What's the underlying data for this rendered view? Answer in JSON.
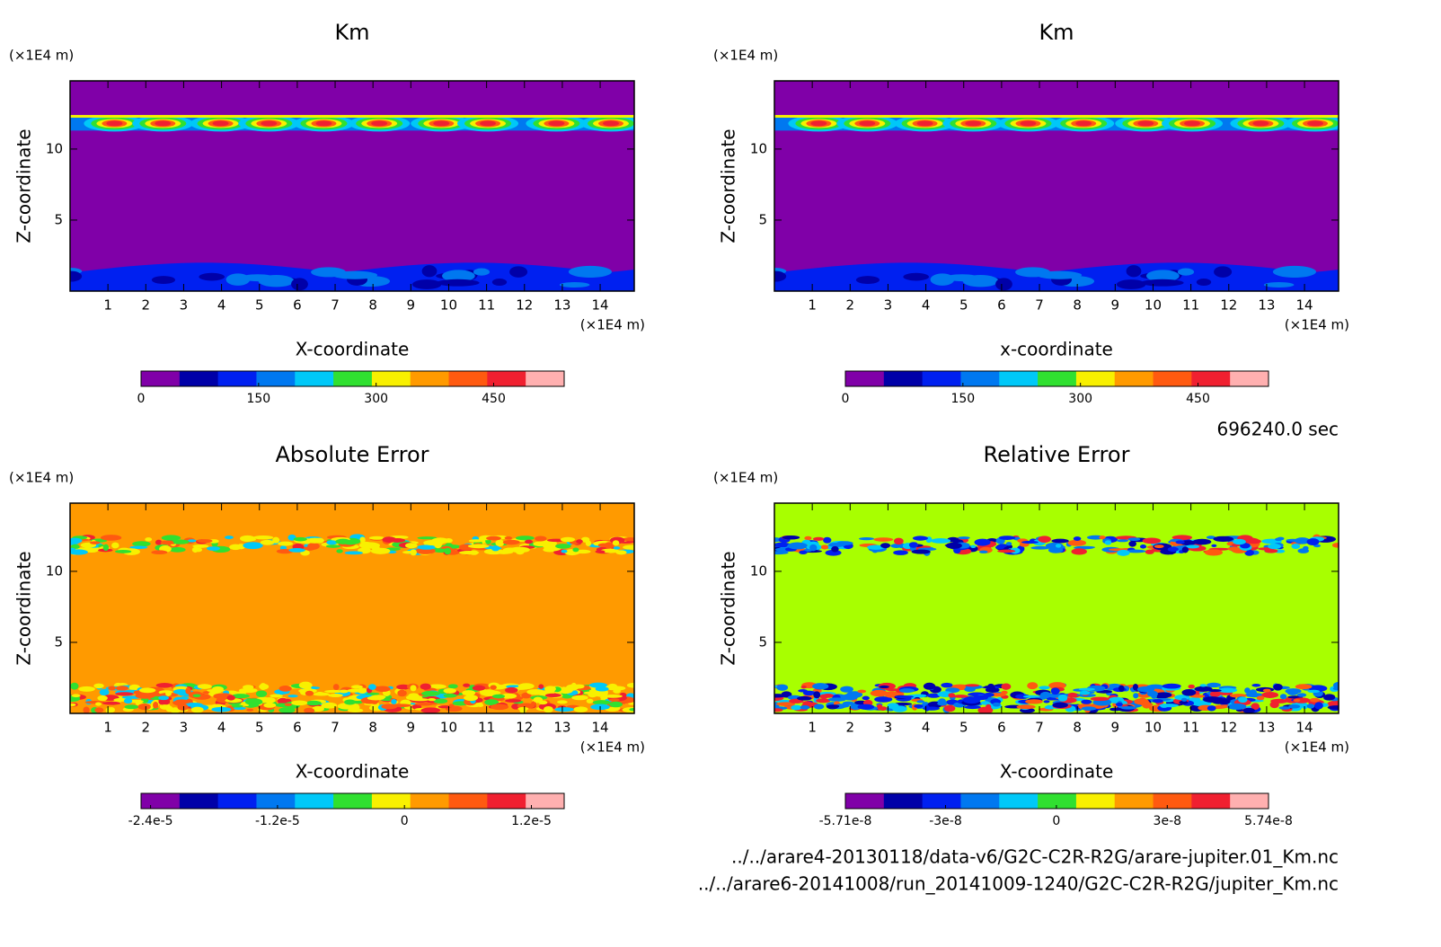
{
  "chart_data": [
    {
      "type": "contour",
      "title": "Km",
      "xlabel": "X-coordinate",
      "ylabel": "Z-coordinate",
      "xunit": "(×1E4 m)",
      "yunit": "(×1E4 m)",
      "xlim": [
        0,
        14.9
      ],
      "ylim": [
        0,
        14.8
      ],
      "xticks": [
        1,
        2,
        3,
        4,
        5,
        6,
        7,
        8,
        9,
        10,
        11,
        12,
        13,
        14
      ],
      "yticks": [
        5,
        10
      ],
      "background_color": "#8000a8",
      "colorbar": {
        "colors": [
          "#8000a8",
          "#0000a8",
          "#0020f0",
          "#0078f0",
          "#00c8f8",
          "#30e030",
          "#f8f000",
          "#ff9a00",
          "#ff5a10",
          "#f02030",
          "#ffb0b0"
        ],
        "clim": [
          0,
          540
        ],
        "ticks": [
          0,
          150,
          300,
          450
        ]
      }
    },
    {
      "type": "contour",
      "title": "Km",
      "xlabel": "x-coordinate",
      "ylabel": "Z-coordinate",
      "xunit": "(×1E4 m)",
      "yunit": "(×1E4 m)",
      "xlim": [
        0,
        14.9
      ],
      "ylim": [
        0,
        14.8
      ],
      "xticks": [
        1,
        2,
        3,
        4,
        5,
        6,
        7,
        8,
        9,
        10,
        11,
        12,
        13,
        14
      ],
      "yticks": [
        5,
        10
      ],
      "background_color": "#8000a8",
      "colorbar": {
        "colors": [
          "#8000a8",
          "#0000a8",
          "#0020f0",
          "#0078f0",
          "#00c8f8",
          "#30e030",
          "#f8f000",
          "#ff9a00",
          "#ff5a10",
          "#f02030",
          "#ffb0b0"
        ],
        "clim": [
          0,
          540
        ],
        "ticks": [
          0,
          150,
          300,
          450
        ]
      }
    },
    {
      "type": "contour",
      "title": "Absolute Error",
      "xlabel": "X-coordinate",
      "ylabel": "Z-coordinate",
      "xunit": "(×1E4 m)",
      "yunit": "(×1E4 m)",
      "xlim": [
        0,
        14.9
      ],
      "ylim": [
        0,
        14.8
      ],
      "xticks": [
        1,
        2,
        3,
        4,
        5,
        6,
        7,
        8,
        9,
        10,
        11,
        12,
        13,
        14
      ],
      "yticks": [
        5,
        10
      ],
      "background_color": "#ff9a00",
      "colorbar": {
        "colors": [
          "#8000a8",
          "#0000a8",
          "#0020f0",
          "#0078f0",
          "#00c8f8",
          "#30e030",
          "#f8f000",
          "#ff9a00",
          "#ff5a10",
          "#f02030",
          "#ffb0b0"
        ],
        "clim": [
          -2.49e-05,
          1.51e-05
        ],
        "ticks": [
          {
            "value": -2.4e-05,
            "label": "-2.4e-5"
          },
          {
            "value": -1.2e-05,
            "label": "-1.2e-5"
          },
          0,
          {
            "value": 1.2e-05,
            "label": "1.2e-5"
          }
        ]
      }
    },
    {
      "type": "contour",
      "title": "Relative Error",
      "xlabel": "X-coordinate",
      "ylabel": "Z-coordinate",
      "xunit": "(×1E4 m)",
      "yunit": "(×1E4 m)",
      "xlim": [
        0,
        14.9
      ],
      "ylim": [
        0,
        14.8
      ],
      "xticks": [
        1,
        2,
        3,
        4,
        5,
        6,
        7,
        8,
        9,
        10,
        11,
        12,
        13,
        14
      ],
      "yticks": [
        5,
        10
      ],
      "background_color": "#a8ff00",
      "colorbar": {
        "colors": [
          "#8000a8",
          "#0000a8",
          "#0020f0",
          "#0078f0",
          "#00c8f8",
          "#30e030",
          "#f8f000",
          "#ff9a00",
          "#ff5a10",
          "#f02030",
          "#ffb0b0"
        ],
        "clim": [
          -5.71e-08,
          5.74e-08
        ],
        "ticks": [
          {
            "value": -5.71e-08,
            "label": "-5.71e-8"
          },
          {
            "value": -3e-08,
            "label": "-3e-8"
          },
          0,
          {
            "value": 3e-08,
            "label": "3e-8"
          },
          {
            "value": 5.74e-08,
            "label": "5.74e-8"
          }
        ]
      }
    }
  ],
  "time_label": "696240.0 sec",
  "files": [
    "../../arare4-20130118/data-v6/G2C-C2R-R2G/arare-jupiter.01_Km.nc",
    "../../arare6-20141008/run_20141009-1240/G2C-C2R-R2G/jupiter_Km.nc"
  ]
}
